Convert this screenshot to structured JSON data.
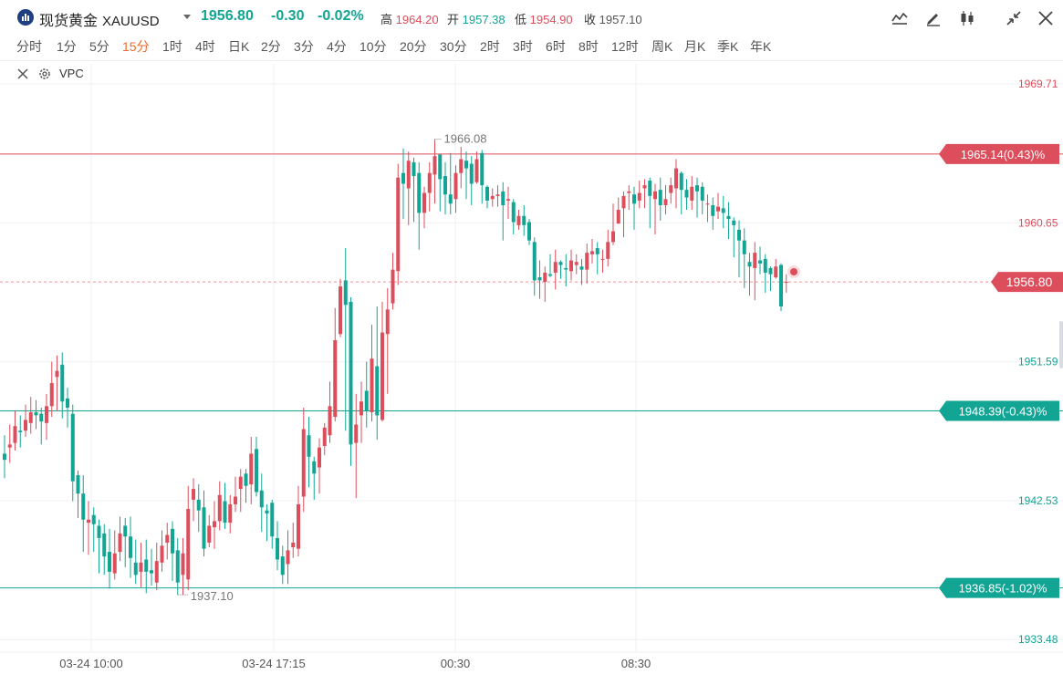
{
  "header": {
    "name": "现货黄金",
    "ticker": "XAUUSD",
    "price": "1956.80",
    "change": "-0.30",
    "change_pct": "-0.02%",
    "high_label": "高",
    "high": "1964.20",
    "open_label": "开",
    "open": "1957.38",
    "low_label": "低",
    "low": "1954.90",
    "close_label": "收",
    "close": "1957.10"
  },
  "toolbar": {
    "icons": [
      "line-tool-icon",
      "pencil-icon",
      "candlestick-type-icon",
      "collapse-icon",
      "close-icon"
    ]
  },
  "timeframes": [
    "分时",
    "1分",
    "5分",
    "15分",
    "1时",
    "4时",
    "日K",
    "2分",
    "3分",
    "4分",
    "10分",
    "20分",
    "30分",
    "2时",
    "3时",
    "6时",
    "8时",
    "12时",
    "周K",
    "月K",
    "季K",
    "年K"
  ],
  "active_timeframe": "15分",
  "indicator": {
    "name": "VPC"
  },
  "colors": {
    "up": "#dd4e5c",
    "down": "#12a594",
    "ref_up": "#dd4e5c",
    "ref_down": "#12a594"
  },
  "chart_data": {
    "type": "candlestick",
    "symbol": "XAUUSD",
    "interval": "15分",
    "ylim": [
      1932.9,
      1970.6
    ],
    "y_ticks": [
      "1969.71",
      "1960.65",
      "1951.59",
      "1942.53",
      "1933.48"
    ],
    "x_ticks": [
      "03-24 10:00",
      "03-24 17:15",
      "00:30",
      "08:30"
    ],
    "current_price": "1956.80",
    "max_annotation": "1966.08",
    "min_annotation": "1937.10",
    "levels": [
      {
        "price": 1965.14,
        "label": "1965.14(0.43)%",
        "color": "#dd4e5c"
      },
      {
        "price": 1948.39,
        "label": "1948.39(-0.43)%",
        "color": "#12a594"
      },
      {
        "price": 1936.85,
        "label": "1936.85(-1.02)%",
        "color": "#12a594"
      }
    ],
    "candles": [
      [
        1945.6,
        1945.2,
        1946.8,
        1944.0
      ],
      [
        1946.0,
        1946.2,
        1947.5,
        1945.0
      ],
      [
        1946.3,
        1947.4,
        1948.4,
        1945.8
      ],
      [
        1947.1,
        1947.0,
        1948.1,
        1946.0
      ],
      [
        1947.1,
        1947.8,
        1948.8,
        1946.7
      ],
      [
        1947.6,
        1948.3,
        1949.3,
        1946.9
      ],
      [
        1948.3,
        1948.1,
        1949.1,
        1947.2
      ],
      [
        1948.2,
        1947.7,
        1948.6,
        1946.2
      ],
      [
        1947.6,
        1948.7,
        1949.5,
        1946.5
      ],
      [
        1948.7,
        1950.2,
        1951.6,
        1948.0
      ],
      [
        1950.6,
        1951.0,
        1952.0,
        1948.4
      ],
      [
        1951.4,
        1949.0,
        1952.2,
        1947.9
      ],
      [
        1949.2,
        1948.6,
        1949.9,
        1947.3
      ],
      [
        1948.2,
        1943.8,
        1948.8,
        1942.5
      ],
      [
        1944.2,
        1943.0,
        1944.5,
        1941.4
      ],
      [
        1943.0,
        1941.3,
        1944.2,
        1939.2
      ],
      [
        1941.1,
        1941.3,
        1942.5,
        1939.0
      ],
      [
        1941.6,
        1941.0,
        1942.1,
        1939.2
      ],
      [
        1940.9,
        1940.1,
        1941.3,
        1937.8
      ],
      [
        1940.4,
        1938.9,
        1941.0,
        1937.7
      ],
      [
        1939.2,
        1937.9,
        1940.7,
        1936.8
      ],
      [
        1937.8,
        1939.1,
        1940.6,
        1937.4
      ],
      [
        1939.2,
        1940.4,
        1941.5,
        1938.6
      ],
      [
        1940.9,
        1940.2,
        1941.4,
        1938.2
      ],
      [
        1940.2,
        1938.8,
        1941.5,
        1937.5
      ],
      [
        1938.5,
        1937.7,
        1940.0,
        1937.1
      ],
      [
        1937.9,
        1938.5,
        1939.8,
        1936.9
      ],
      [
        1938.7,
        1937.9,
        1940.0,
        1936.5
      ],
      [
        1938.0,
        1937.8,
        1939.4,
        1937.0
      ],
      [
        1937.2,
        1938.6,
        1939.8,
        1936.7
      ],
      [
        1938.5,
        1939.6,
        1940.6,
        1937.9
      ],
      [
        1939.8,
        1940.3,
        1941.1,
        1938.7
      ],
      [
        1940.7,
        1939.1,
        1941.2,
        1937.3
      ],
      [
        1939.3,
        1937.2,
        1940.1,
        1936.4
      ],
      [
        1937.7,
        1939.1,
        1940.1,
        1936.4
      ],
      [
        1937.4,
        1942.0,
        1943.5,
        1936.7
      ],
      [
        1942.6,
        1943.3,
        1944.0,
        1941.2
      ],
      [
        1942.6,
        1941.9,
        1943.6,
        1940.5
      ],
      [
        1942.1,
        1939.4,
        1943.2,
        1938.9
      ],
      [
        1939.8,
        1940.9,
        1941.6,
        1939.5
      ],
      [
        1940.8,
        1941.2,
        1942.5,
        1939.4
      ],
      [
        1941.2,
        1942.9,
        1943.8,
        1940.6
      ],
      [
        1942.5,
        1941.1,
        1943.7,
        1940.7
      ],
      [
        1941.1,
        1942.3,
        1942.9,
        1940.4
      ],
      [
        1942.3,
        1942.8,
        1944.1,
        1941.8
      ],
      [
        1943.3,
        1944.1,
        1944.6,
        1941.8
      ],
      [
        1944.3,
        1943.5,
        1944.6,
        1942.4
      ],
      [
        1943.6,
        1945.6,
        1946.7,
        1942.3
      ],
      [
        1945.9,
        1943.1,
        1946.7,
        1942.8
      ],
      [
        1943.2,
        1942.1,
        1944.3,
        1940.5
      ],
      [
        1941.9,
        1941.7,
        1942.3,
        1939.9
      ],
      [
        1942.4,
        1940.2,
        1942.6,
        1939.4
      ],
      [
        1940.1,
        1938.7,
        1941.2,
        1938.0
      ],
      [
        1938.9,
        1937.7,
        1939.6,
        1937.1
      ],
      [
        1938.4,
        1939.3,
        1940.6,
        1937.1
      ],
      [
        1939.5,
        1939.8,
        1941.1,
        1938.8
      ],
      [
        1939.4,
        1942.3,
        1943.5,
        1938.9
      ],
      [
        1942.8,
        1947.2,
        1948.6,
        1941.8
      ],
      [
        1946.8,
        1945.4,
        1948.0,
        1943.4
      ],
      [
        1945.1,
        1944.3,
        1945.4,
        1942.6
      ],
      [
        1944.7,
        1946.0,
        1946.6,
        1943.0
      ],
      [
        1946.1,
        1947.3,
        1947.6,
        1945.5
      ],
      [
        1946.8,
        1948.7,
        1950.3,
        1946.3
      ],
      [
        1948.0,
        1953.0,
        1955.1,
        1947.7
      ],
      [
        1953.4,
        1956.5,
        1957.0,
        1953.2
      ],
      [
        1956.9,
        1955.3,
        1959.0,
        1947.1
      ],
      [
        1955.5,
        1946.2,
        1955.8,
        1944.8
      ],
      [
        1946.3,
        1947.5,
        1949.5,
        1942.7
      ],
      [
        1948.1,
        1949.0,
        1950.3,
        1946.3
      ],
      [
        1949.7,
        1948.4,
        1951.6,
        1947.3
      ],
      [
        1948.3,
        1951.8,
        1954.0,
        1947.7
      ],
      [
        1951.3,
        1948.1,
        1955.2,
        1946.5
      ],
      [
        1947.8,
        1953.5,
        1955.5,
        1947.7
      ],
      [
        1953.4,
        1955.0,
        1956.4,
        1949.5
      ],
      [
        1955.4,
        1957.6,
        1958.7,
        1955.0
      ],
      [
        1957.5,
        1963.6,
        1964.5,
        1956.6
      ],
      [
        1963.9,
        1963.2,
        1965.5,
        1960.9
      ],
      [
        1962.9,
        1964.7,
        1965.3,
        1960.5
      ],
      [
        1964.6,
        1963.7,
        1964.9,
        1960.7
      ],
      [
        1963.9,
        1961.3,
        1964.6,
        1958.9
      ],
      [
        1961.3,
        1962.6,
        1963.0,
        1960.3
      ],
      [
        1962.6,
        1963.9,
        1964.6,
        1961.4
      ],
      [
        1963.8,
        1965.0,
        1966.1,
        1961.9
      ],
      [
        1965.1,
        1963.5,
        1965.1,
        1961.4
      ],
      [
        1963.7,
        1962.5,
        1964.6,
        1961.2
      ],
      [
        1962.5,
        1961.9,
        1965.2,
        1961.2
      ],
      [
        1962.2,
        1963.9,
        1964.4,
        1961.3
      ],
      [
        1963.9,
        1964.8,
        1965.6,
        1962.9
      ],
      [
        1964.7,
        1964.2,
        1965.3,
        1962.2
      ],
      [
        1964.5,
        1963.2,
        1965.0,
        1961.8
      ],
      [
        1963.3,
        1964.8,
        1965.3,
        1963.2
      ],
      [
        1965.2,
        1963.1,
        1965.4,
        1961.9
      ],
      [
        1963.0,
        1962.1,
        1963.1,
        1961.6
      ],
      [
        1962.2,
        1962.4,
        1962.9,
        1961.7
      ],
      [
        1962.4,
        1962.5,
        1963.1,
        1961.7
      ],
      [
        1962.7,
        1961.8,
        1963.3,
        1959.5
      ],
      [
        1962.1,
        1962.2,
        1963.0,
        1960.9
      ],
      [
        1962.0,
        1960.7,
        1962.2,
        1959.9
      ],
      [
        1960.5,
        1961.1,
        1961.5,
        1960.2
      ],
      [
        1961.1,
        1960.5,
        1961.8,
        1959.8
      ],
      [
        1960.7,
        1959.5,
        1960.9,
        1959.2
      ],
      [
        1959.4,
        1956.9,
        1959.7,
        1955.9
      ],
      [
        1957.1,
        1956.9,
        1958.2,
        1955.7
      ],
      [
        1956.8,
        1957.4,
        1957.8,
        1955.5
      ],
      [
        1957.3,
        1957.2,
        1958.6,
        1957.1
      ],
      [
        1957.4,
        1958.1,
        1958.9,
        1956.3
      ],
      [
        1958.1,
        1957.9,
        1958.2,
        1957.0
      ],
      [
        1957.7,
        1957.6,
        1958.6,
        1956.5
      ],
      [
        1957.5,
        1958.2,
        1958.9,
        1956.9
      ],
      [
        1957.9,
        1958.1,
        1958.6,
        1957.3
      ],
      [
        1957.8,
        1957.6,
        1958.3,
        1956.6
      ],
      [
        1957.6,
        1958.7,
        1959.3,
        1956.7
      ],
      [
        1958.6,
        1958.8,
        1959.6,
        1958.0
      ],
      [
        1959.0,
        1958.6,
        1959.4,
        1957.3
      ],
      [
        1958.3,
        1958.3,
        1958.9,
        1957.4
      ],
      [
        1958.3,
        1959.4,
        1960.2,
        1957.8
      ],
      [
        1959.4,
        1960.1,
        1961.9,
        1959.2
      ],
      [
        1960.6,
        1961.5,
        1962.3,
        1960.6
      ],
      [
        1961.6,
        1962.4,
        1962.7,
        1959.7
      ],
      [
        1962.6,
        1962.7,
        1963.1,
        1961.5
      ],
      [
        1962.5,
        1961.9,
        1963.0,
        1960.2
      ],
      [
        1962.1,
        1962.6,
        1963.4,
        1961.6
      ],
      [
        1962.9,
        1963.1,
        1963.5,
        1961.6
      ],
      [
        1963.4,
        1962.4,
        1963.6,
        1960.3
      ],
      [
        1962.2,
        1962.7,
        1963.2,
        1959.9
      ],
      [
        1962.8,
        1961.8,
        1963.6,
        1960.8
      ],
      [
        1961.8,
        1962.2,
        1963.1,
        1961.2
      ],
      [
        1962.6,
        1963.1,
        1963.6,
        1961.9
      ],
      [
        1962.9,
        1964.2,
        1964.8,
        1961.6
      ],
      [
        1963.9,
        1962.8,
        1964.0,
        1961.2
      ],
      [
        1962.8,
        1962.3,
        1963.5,
        1961.5
      ],
      [
        1962.1,
        1963.0,
        1963.7,
        1961.5
      ],
      [
        1963.1,
        1962.7,
        1963.6,
        1961.0
      ],
      [
        1963.0,
        1962.1,
        1963.3,
        1961.2
      ],
      [
        1961.9,
        1961.9,
        1962.5,
        1960.7
      ],
      [
        1961.8,
        1961.1,
        1962.3,
        1960.2
      ],
      [
        1961.4,
        1961.7,
        1962.6,
        1960.9
      ],
      [
        1961.6,
        1961.3,
        1962.4,
        1960.3
      ],
      [
        1961.1,
        1960.9,
        1962.0,
        1959.6
      ],
      [
        1960.8,
        1960.5,
        1961.0,
        1958.4
      ],
      [
        1960.2,
        1959.5,
        1960.8,
        1957.1
      ],
      [
        1959.5,
        1958.6,
        1960.3,
        1956.4
      ],
      [
        1958.1,
        1957.8,
        1958.7,
        1955.9
      ],
      [
        1957.7,
        1958.7,
        1959.4,
        1955.6
      ],
      [
        1958.2,
        1958.0,
        1959.1,
        1957.3
      ],
      [
        1958.3,
        1957.4,
        1958.6,
        1956.1
      ],
      [
        1957.7,
        1957.3,
        1957.8,
        1956.2
      ],
      [
        1957.1,
        1957.8,
        1958.3,
        1957.0
      ],
      [
        1957.9,
        1955.2,
        1958.0,
        1954.9
      ],
      [
        1956.8,
        1956.8,
        1957.3,
        1956.1
      ]
    ]
  }
}
